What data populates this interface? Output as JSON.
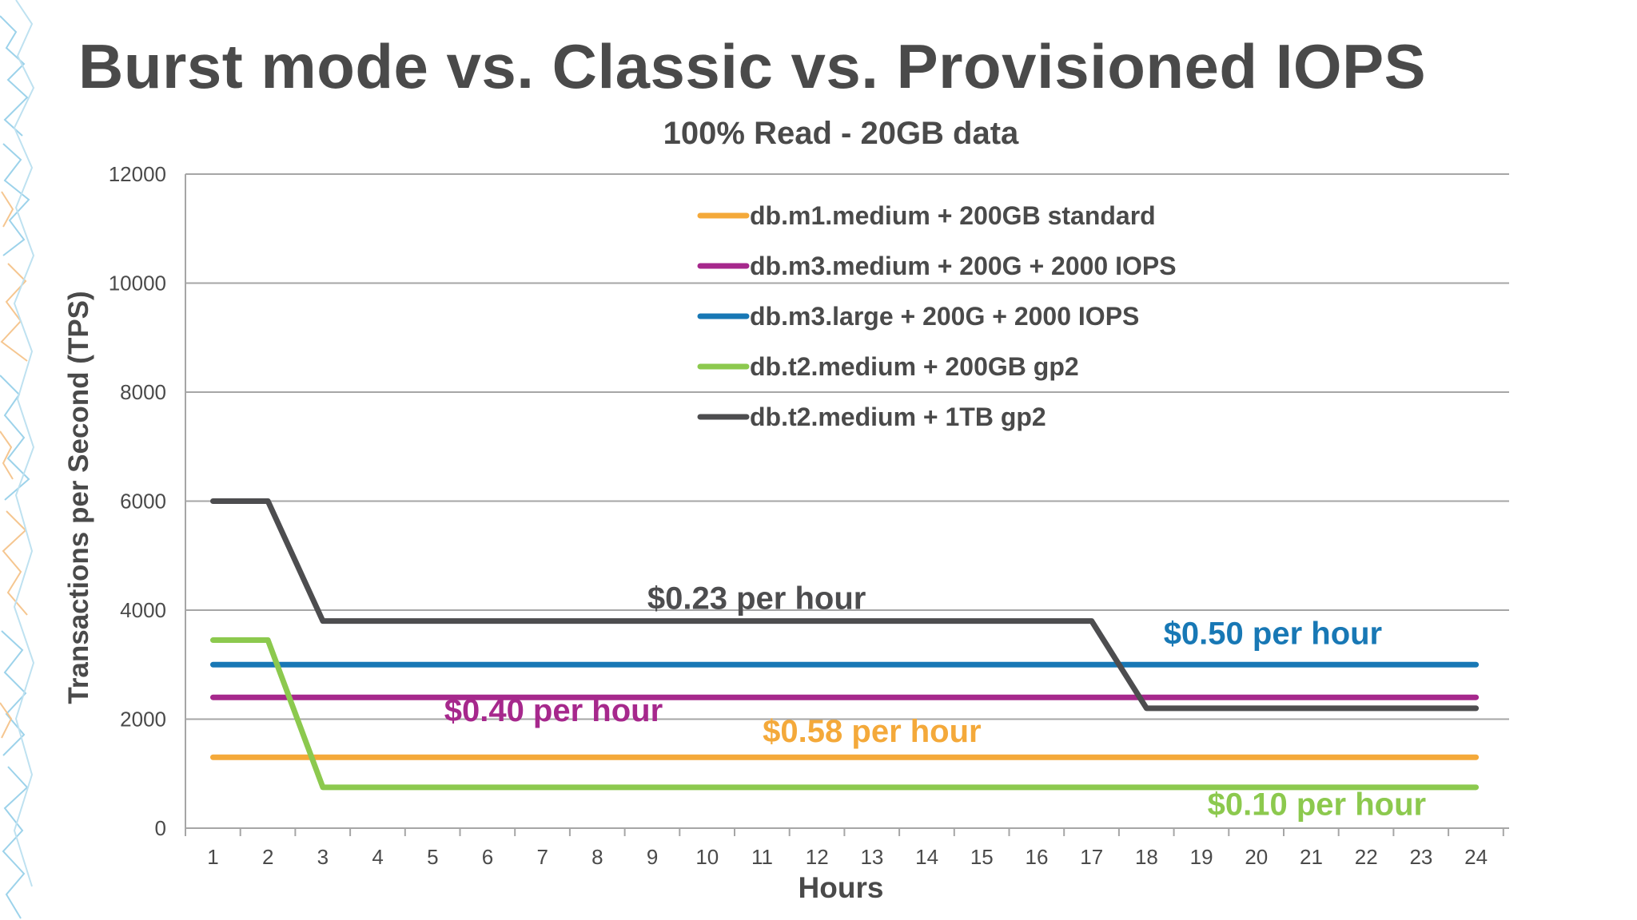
{
  "slide": {
    "title": "Burst mode vs. Classic vs. Provisioned IOPS"
  },
  "colors": {
    "text_dark": "#4a4a4a",
    "gridline": "#a6a6a6",
    "decor_blue": "#7cc4e4",
    "decor_orange": "#f2b36b"
  },
  "chart_data": {
    "type": "line",
    "title": "100% Read - 20GB data",
    "xlabel": "Hours",
    "ylabel": "Transactions per Second (TPS)",
    "x": [
      1,
      2,
      3,
      4,
      5,
      6,
      7,
      8,
      9,
      10,
      11,
      12,
      13,
      14,
      15,
      16,
      17,
      18,
      19,
      20,
      21,
      22,
      23,
      24
    ],
    "ylim": [
      0,
      12000
    ],
    "yticks": [
      0,
      2000,
      4000,
      6000,
      8000,
      10000,
      12000
    ],
    "grid": true,
    "legend_position": "top-center",
    "series": [
      {
        "name": "db.m1.medium + 200GB standard",
        "color": "#f4a93a",
        "values": [
          1300,
          1300,
          1300,
          1300,
          1300,
          1300,
          1300,
          1300,
          1300,
          1300,
          1300,
          1300,
          1300,
          1300,
          1300,
          1300,
          1300,
          1300,
          1300,
          1300,
          1300,
          1300,
          1300,
          1300
        ]
      },
      {
        "name": "db.m3.medium + 200G + 2000 IOPS",
        "color": "#a6288c",
        "values": [
          2400,
          2400,
          2400,
          2400,
          2400,
          2400,
          2400,
          2400,
          2400,
          2400,
          2400,
          2400,
          2400,
          2400,
          2400,
          2400,
          2400,
          2400,
          2400,
          2400,
          2400,
          2400,
          2400,
          2400
        ]
      },
      {
        "name": "db.m3.large + 200G + 2000 IOPS",
        "color": "#1878b5",
        "values": [
          3000,
          3000,
          3000,
          3000,
          3000,
          3000,
          3000,
          3000,
          3000,
          3000,
          3000,
          3000,
          3000,
          3000,
          3000,
          3000,
          3000,
          3000,
          3000,
          3000,
          3000,
          3000,
          3000,
          3000
        ]
      },
      {
        "name": "db.t2.medium + 200GB gp2",
        "color": "#8cc94e",
        "values": [
          3450,
          3450,
          750,
          750,
          750,
          750,
          750,
          750,
          750,
          750,
          750,
          750,
          750,
          750,
          750,
          750,
          750,
          750,
          750,
          750,
          750,
          750,
          750,
          750
        ]
      },
      {
        "name": "db.t2.medium + 1TB gp2",
        "color": "#4d4d4f",
        "values": [
          6000,
          6000,
          3800,
          3800,
          3800,
          3800,
          3800,
          3800,
          3800,
          3800,
          3800,
          3800,
          3800,
          3800,
          3800,
          3800,
          3800,
          2200,
          2200,
          2200,
          2200,
          2200,
          2200,
          2200
        ]
      }
    ],
    "annotations": [
      {
        "text": "$0.23 per hour",
        "color": "#4d4d4f",
        "x": 10.9,
        "y": 4020
      },
      {
        "text": "$0.50 per hour",
        "color": "#1878b5",
        "x": 20.3,
        "y": 3380
      },
      {
        "text": "$0.40 per hour",
        "color": "#a6288c",
        "x": 7.2,
        "y": 1960
      },
      {
        "text": "$0.58 per hour",
        "color": "#f4a93a",
        "x": 13.0,
        "y": 1580
      },
      {
        "text": "$0.10 per hour",
        "color": "#8cc94e",
        "x": 21.1,
        "y": 240
      }
    ]
  }
}
